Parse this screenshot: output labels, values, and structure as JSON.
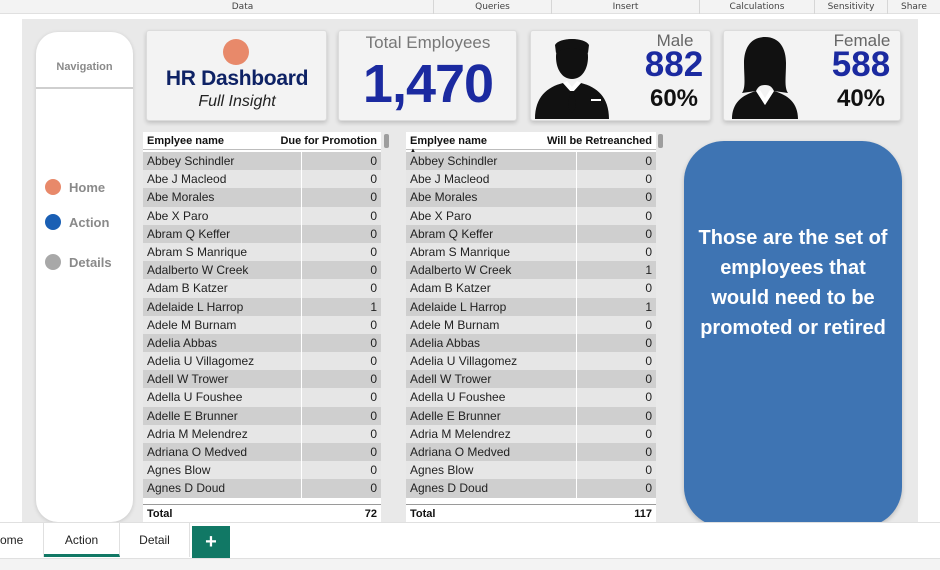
{
  "ribbon": {
    "groups": [
      "Data",
      "Queries",
      "Insert",
      "Calculations",
      "Sensitivity",
      "Share"
    ]
  },
  "nav": {
    "title": "Navigation",
    "items": [
      {
        "label": "Home",
        "color": "#e8896a"
      },
      {
        "label": "Action",
        "color": "#1a5fb4"
      },
      {
        "label": "Details",
        "color": "#a8a8a8"
      }
    ]
  },
  "header": {
    "title": "HR Dashboard",
    "subtitle": "Full Insight"
  },
  "kpis": {
    "total": {
      "label": "Total Employees",
      "value": "1,470"
    },
    "male": {
      "label": "Male",
      "value": "882",
      "pct": "60%"
    },
    "female": {
      "label": "Female",
      "value": "588",
      "pct": "40%"
    }
  },
  "promotion_table": {
    "col_name": "Emplyee name",
    "col_value": "Due for Promotion",
    "rows": [
      {
        "name": "Abbey Schindler",
        "value": "0"
      },
      {
        "name": "Abe J Macleod",
        "value": "0"
      },
      {
        "name": "Abe Morales",
        "value": "0"
      },
      {
        "name": "Abe X Paro",
        "value": "0"
      },
      {
        "name": "Abram Q Keffer",
        "value": "0"
      },
      {
        "name": "Abram S Manrique",
        "value": "0"
      },
      {
        "name": "Adalberto W Creek",
        "value": "0"
      },
      {
        "name": "Adam B Katzer",
        "value": "0"
      },
      {
        "name": "Adelaide L Harrop",
        "value": "1"
      },
      {
        "name": "Adele M Burnam",
        "value": "0"
      },
      {
        "name": "Adelia Abbas",
        "value": "0"
      },
      {
        "name": "Adelia U Villagomez",
        "value": "0"
      },
      {
        "name": "Adell W Trower",
        "value": "0"
      },
      {
        "name": "Adella U Foushee",
        "value": "0"
      },
      {
        "name": "Adelle E Brunner",
        "value": "0"
      },
      {
        "name": "Adria M Melendrez",
        "value": "0"
      },
      {
        "name": "Adriana O Medved",
        "value": "0"
      },
      {
        "name": "Agnes Blow",
        "value": "0"
      },
      {
        "name": "Agnes D Doud",
        "value": "0"
      }
    ],
    "total_label": "Total",
    "total_value": "72"
  },
  "retrench_table": {
    "col_name": "Emplyee name",
    "col_value": "Will be Retreanched",
    "rows": [
      {
        "name": "Abbey Schindler",
        "value": "0"
      },
      {
        "name": "Abe J Macleod",
        "value": "0"
      },
      {
        "name": "Abe Morales",
        "value": "0"
      },
      {
        "name": "Abe X Paro",
        "value": "0"
      },
      {
        "name": "Abram Q Keffer",
        "value": "0"
      },
      {
        "name": "Abram S Manrique",
        "value": "0"
      },
      {
        "name": "Adalberto W Creek",
        "value": "1"
      },
      {
        "name": "Adam B Katzer",
        "value": "0"
      },
      {
        "name": "Adelaide L Harrop",
        "value": "1"
      },
      {
        "name": "Adele M Burnam",
        "value": "0"
      },
      {
        "name": "Adelia Abbas",
        "value": "0"
      },
      {
        "name": "Adelia U Villagomez",
        "value": "0"
      },
      {
        "name": "Adell W Trower",
        "value": "0"
      },
      {
        "name": "Adella U Foushee",
        "value": "0"
      },
      {
        "name": "Adelle E Brunner",
        "value": "0"
      },
      {
        "name": "Adria M Melendrez",
        "value": "0"
      },
      {
        "name": "Adriana O Medved",
        "value": "0"
      },
      {
        "name": "Agnes Blow",
        "value": "0"
      },
      {
        "name": "Agnes D Doud",
        "value": "0"
      }
    ],
    "total_label": "Total",
    "total_value": "117"
  },
  "callout": {
    "text": "Those are the set of employees that would need to be promoted or retired"
  },
  "page_tabs": {
    "items": [
      "ome",
      "Action",
      "Detail"
    ],
    "active": "Action",
    "add_label": "+"
  }
}
